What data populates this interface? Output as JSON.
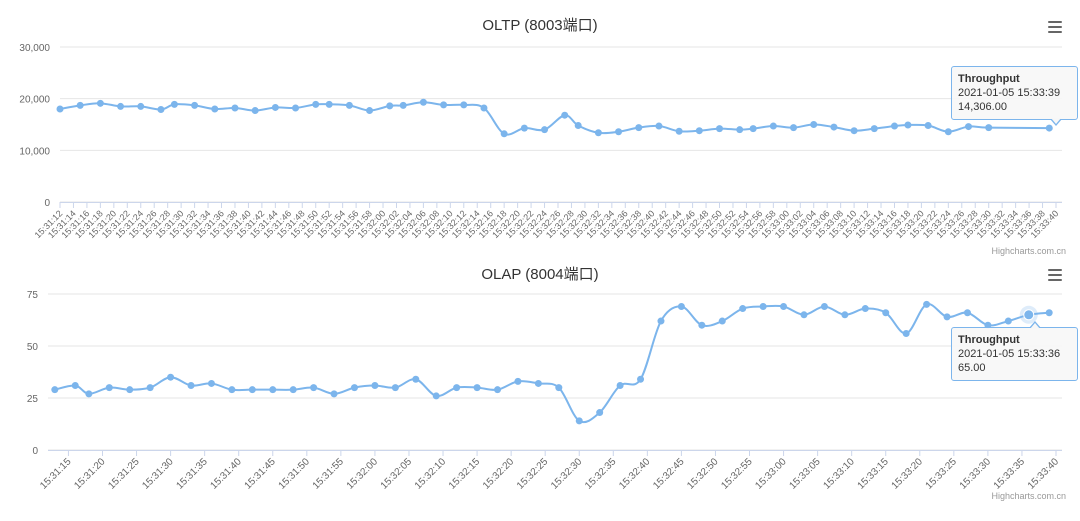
{
  "charts": [
    {
      "title": "OLTP (8003端口)",
      "credits": "Highcharts.com.cn",
      "menu_icon": "hamburger-menu-icon",
      "tooltip": {
        "series": "Throughput",
        "time": "2021-01-05 15:33:39",
        "value": "14,306.00"
      }
    },
    {
      "title": "OLAP (8004端口)",
      "credits": "Highcharts.com.cn",
      "menu_icon": "hamburger-menu-icon",
      "tooltip": {
        "series": "Throughput",
        "time": "2021-01-05 15:33:36",
        "value": "65.00"
      }
    }
  ],
  "chart_data": [
    {
      "type": "line",
      "title": "OLTP (8003端口)",
      "xlabel": "",
      "ylabel": "",
      "ylim": [
        0,
        30000
      ],
      "y_ticks": [
        "0",
        "10,000",
        "20,000",
        "30,000"
      ],
      "x_ticks": [
        "15:31:12",
        "15:31:14",
        "15:31:16",
        "15:31:18",
        "15:31:20",
        "15:31:22",
        "15:31:24",
        "15:31:26",
        "15:31:28",
        "15:31:30",
        "15:31:32",
        "15:31:34",
        "15:31:36",
        "15:31:38",
        "15:31:40",
        "15:31:42",
        "15:31:44",
        "15:31:46",
        "15:31:48",
        "15:31:50",
        "15:31:52",
        "15:31:54",
        "15:31:56",
        "15:31:58",
        "15:32:00",
        "15:32:02",
        "15:32:04",
        "15:32:06",
        "15:32:08",
        "15:32:10",
        "15:32:12",
        "15:32:14",
        "15:32:16",
        "15:32:18",
        "15:32:20",
        "15:32:22",
        "15:32:24",
        "15:32:26",
        "15:32:28",
        "15:32:30",
        "15:32:32",
        "15:32:34",
        "15:32:36",
        "15:32:38",
        "15:32:40",
        "15:32:42",
        "15:32:44",
        "15:32:46",
        "15:32:48",
        "15:32:50",
        "15:32:52",
        "15:32:54",
        "15:32:56",
        "15:32:58",
        "15:33:00",
        "15:33:02",
        "15:33:04",
        "15:33:06",
        "15:33:08",
        "15:33:10",
        "15:33:12",
        "15:33:14",
        "15:33:16",
        "15:33:18",
        "15:33:20",
        "15:33:22",
        "15:33:24",
        "15:33:26",
        "15:33:28",
        "15:33:30",
        "15:33:32",
        "15:33:34",
        "15:33:36",
        "15:33:38",
        "15:33:40"
      ],
      "grid": true,
      "legend": "none",
      "color": "#7cb5ec",
      "series": [
        {
          "name": "Throughput",
          "points": [
            [
              "15:31:12",
              18000
            ],
            [
              "15:31:15",
              18700
            ],
            [
              "15:31:18",
              19100
            ],
            [
              "15:31:21",
              18500
            ],
            [
              "15:31:24",
              18500
            ],
            [
              "15:31:27",
              17900
            ],
            [
              "15:31:29",
              18900
            ],
            [
              "15:31:32",
              18700
            ],
            [
              "15:31:35",
              18000
            ],
            [
              "15:31:38",
              18200
            ],
            [
              "15:31:41",
              17700
            ],
            [
              "15:31:44",
              18300
            ],
            [
              "15:31:47",
              18200
            ],
            [
              "15:31:50",
              18900
            ],
            [
              "15:31:52",
              18900
            ],
            [
              "15:31:55",
              18700
            ],
            [
              "15:31:58",
              17700
            ],
            [
              "15:32:01",
              18600
            ],
            [
              "15:32:03",
              18700
            ],
            [
              "15:32:06",
              19300
            ],
            [
              "15:32:09",
              18800
            ],
            [
              "15:32:12",
              18800
            ],
            [
              "15:32:15",
              18200
            ],
            [
              "15:32:18",
              13200
            ],
            [
              "15:32:21",
              14300
            ],
            [
              "15:32:24",
              14000
            ],
            [
              "15:32:27",
              16800
            ],
            [
              "15:32:29",
              14800
            ],
            [
              "15:32:32",
              13400
            ],
            [
              "15:32:35",
              13600
            ],
            [
              "15:32:38",
              14400
            ],
            [
              "15:32:41",
              14700
            ],
            [
              "15:32:44",
              13700
            ],
            [
              "15:32:47",
              13800
            ],
            [
              "15:32:50",
              14200
            ],
            [
              "15:32:53",
              14000
            ],
            [
              "15:32:55",
              14200
            ],
            [
              "15:32:58",
              14700
            ],
            [
              "15:33:01",
              14400
            ],
            [
              "15:33:04",
              15000
            ],
            [
              "15:33:07",
              14500
            ],
            [
              "15:33:10",
              13800
            ],
            [
              "15:33:13",
              14200
            ],
            [
              "15:33:16",
              14700
            ],
            [
              "15:33:18",
              14900
            ],
            [
              "15:33:21",
              14800
            ],
            [
              "15:33:24",
              13600
            ],
            [
              "15:33:27",
              14600
            ],
            [
              "15:33:30",
              14400
            ],
            [
              "15:33:39",
              14306
            ]
          ]
        }
      ]
    },
    {
      "type": "line",
      "title": "OLAP (8004端口)",
      "xlabel": "",
      "ylabel": "",
      "ylim": [
        0,
        75
      ],
      "y_ticks": [
        "0",
        "25",
        "50",
        "75"
      ],
      "x_ticks": [
        "15:31:15",
        "15:31:20",
        "15:31:25",
        "15:31:30",
        "15:31:35",
        "15:31:40",
        "15:31:45",
        "15:31:50",
        "15:31:55",
        "15:32:00",
        "15:32:05",
        "15:32:10",
        "15:32:15",
        "15:32:20",
        "15:32:25",
        "15:32:30",
        "15:32:35",
        "15:32:40",
        "15:32:45",
        "15:32:50",
        "15:32:55",
        "15:33:00",
        "15:33:05",
        "15:33:10",
        "15:33:15",
        "15:33:20",
        "15:33:25",
        "15:33:30",
        "15:33:35",
        "15:33:40"
      ],
      "grid": true,
      "legend": "none",
      "color": "#7cb5ec",
      "series": [
        {
          "name": "Throughput",
          "points": [
            [
              "15:31:13",
              29
            ],
            [
              "15:31:16",
              31
            ],
            [
              "15:31:18",
              27
            ],
            [
              "15:31:21",
              30
            ],
            [
              "15:31:24",
              29
            ],
            [
              "15:31:27",
              30
            ],
            [
              "15:31:30",
              35
            ],
            [
              "15:31:33",
              31
            ],
            [
              "15:31:36",
              32
            ],
            [
              "15:31:39",
              29
            ],
            [
              "15:31:42",
              29
            ],
            [
              "15:31:45",
              29
            ],
            [
              "15:31:48",
              29
            ],
            [
              "15:31:51",
              30
            ],
            [
              "15:31:54",
              27
            ],
            [
              "15:31:57",
              30
            ],
            [
              "15:32:00",
              31
            ],
            [
              "15:32:03",
              30
            ],
            [
              "15:32:06",
              34
            ],
            [
              "15:32:09",
              26
            ],
            [
              "15:32:12",
              30
            ],
            [
              "15:32:15",
              30
            ],
            [
              "15:32:18",
              29
            ],
            [
              "15:32:21",
              33
            ],
            [
              "15:32:24",
              32
            ],
            [
              "15:32:27",
              30
            ],
            [
              "15:32:30",
              14
            ],
            [
              "15:32:33",
              18
            ],
            [
              "15:32:36",
              31
            ],
            [
              "15:32:39",
              34
            ],
            [
              "15:32:42",
              62
            ],
            [
              "15:32:45",
              69
            ],
            [
              "15:32:48",
              60
            ],
            [
              "15:32:51",
              62
            ],
            [
              "15:32:54",
              68
            ],
            [
              "15:32:57",
              69
            ],
            [
              "15:33:00",
              69
            ],
            [
              "15:33:03",
              65
            ],
            [
              "15:33:06",
              69
            ],
            [
              "15:33:09",
              65
            ],
            [
              "15:33:12",
              68
            ],
            [
              "15:33:15",
              66
            ],
            [
              "15:33:18",
              56
            ],
            [
              "15:33:21",
              70
            ],
            [
              "15:33:24",
              64
            ],
            [
              "15:33:27",
              66
            ],
            [
              "15:33:30",
              60
            ],
            [
              "15:33:33",
              62
            ],
            [
              "15:33:36",
              65
            ],
            [
              "15:33:39",
              66
            ]
          ]
        }
      ]
    }
  ]
}
